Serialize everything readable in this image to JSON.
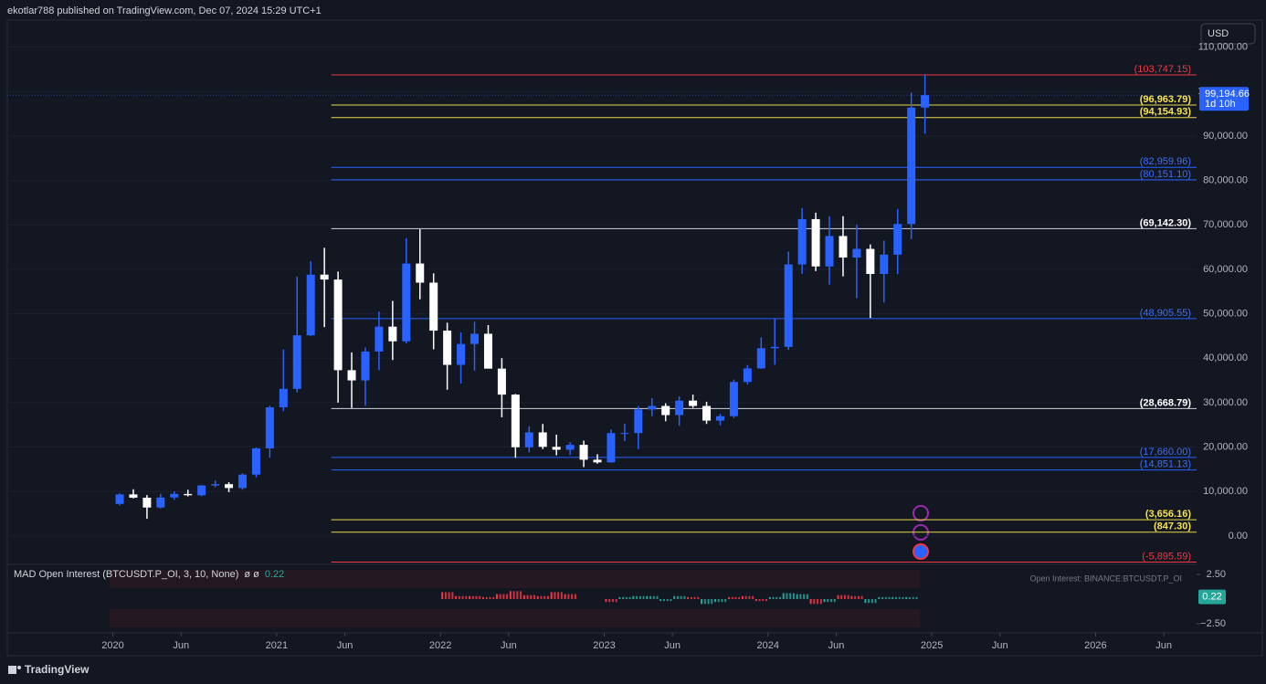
{
  "header": {
    "text": "ekotlar788 published on TradingView.com, Dec 07, 2024 15:29 UTC+1"
  },
  "footer": {
    "brand": "TradingView"
  },
  "currency": "USD",
  "chart_data": {
    "type": "candlestick",
    "up_color": "#2962ff",
    "down_color": "#ffffff",
    "xlim": [
      "2019-05",
      "2026-08"
    ],
    "xticks": [
      {
        "value": "2020-01",
        "label": "2020"
      },
      {
        "value": "2020-06",
        "label": "Jun"
      },
      {
        "value": "2021-01",
        "label": "2021"
      },
      {
        "value": "2021-06",
        "label": "Jun"
      },
      {
        "value": "2022-01",
        "label": "2022"
      },
      {
        "value": "2022-06",
        "label": "Jun"
      },
      {
        "value": "2023-01",
        "label": "2023"
      },
      {
        "value": "2023-06",
        "label": "Jun"
      },
      {
        "value": "2024-01",
        "label": "2024"
      },
      {
        "value": "2024-06",
        "label": "Jun"
      },
      {
        "value": "2025-01",
        "label": "2025"
      },
      {
        "value": "2025-06",
        "label": "Jun"
      },
      {
        "value": "2026-01",
        "label": "2026"
      },
      {
        "value": "2026-06",
        "label": "Jun"
      }
    ],
    "ylim": [
      -6400,
      116500
    ],
    "yticks": [
      {
        "value": 0,
        "label": "0.00"
      },
      {
        "value": 10000,
        "label": "10,000.00"
      },
      {
        "value": 20000,
        "label": "20,000.00"
      },
      {
        "value": 30000,
        "label": "30,000.00"
      },
      {
        "value": 40000,
        "label": "40,000.00"
      },
      {
        "value": 50000,
        "label": "50,000.00"
      },
      {
        "value": 60000,
        "label": "60,000.00"
      },
      {
        "value": 70000,
        "label": "70,000.00"
      },
      {
        "value": 80000,
        "label": "80,000.00"
      },
      {
        "value": 90000,
        "label": "90,000.00"
      },
      {
        "value": 100000,
        "label": "100,000.00"
      },
      {
        "value": 110000,
        "label": "110,000.00"
      }
    ],
    "x": [
      "2020-01",
      "2020-02",
      "2020-03",
      "2020-04",
      "2020-05",
      "2020-06",
      "2020-07",
      "2020-08",
      "2020-09",
      "2020-10",
      "2020-11",
      "2020-12",
      "2021-01",
      "2021-02",
      "2021-03",
      "2021-04",
      "2021-05",
      "2021-06",
      "2021-07",
      "2021-08",
      "2021-09",
      "2021-10",
      "2021-11",
      "2021-12",
      "2022-01",
      "2022-02",
      "2022-03",
      "2022-04",
      "2022-05",
      "2022-06",
      "2022-07",
      "2022-08",
      "2022-09",
      "2022-10",
      "2022-11",
      "2022-12",
      "2023-01",
      "2023-02",
      "2023-03",
      "2023-04",
      "2023-05",
      "2023-06",
      "2023-07",
      "2023-08",
      "2023-09",
      "2023-10",
      "2023-11",
      "2023-12",
      "2024-01",
      "2024-02",
      "2024-03",
      "2024-04",
      "2024-05",
      "2024-06",
      "2024-07",
      "2024-08",
      "2024-09",
      "2024-10",
      "2024-11",
      "2024-12"
    ],
    "open": [
      7200,
      9350,
      8600,
      6400,
      8650,
      9450,
      9150,
      11350,
      11650,
      10780,
      13800,
      19700,
      28950,
      33100,
      45150,
      58800,
      57700,
      37300,
      35000,
      41500,
      47100,
      43800,
      61300,
      57000,
      46200,
      38500,
      43200,
      45500,
      37650,
      31800,
      19950,
      23300,
      20050,
      19400,
      20500,
      17150,
      16550,
      23150,
      23150,
      28450,
      29250,
      27200,
      30450,
      29250,
      25950,
      26950,
      34650,
      37700,
      42250,
      42550,
      61100,
      71300,
      60650,
      67500,
      62650,
      64600,
      58950,
      63300,
      70200,
      96400
    ],
    "high": [
      9600,
      10500,
      9200,
      9450,
      10050,
      10400,
      11450,
      12480,
      12100,
      14100,
      19900,
      29300,
      41950,
      58350,
      61800,
      64850,
      59500,
      41300,
      42400,
      50500,
      52900,
      67000,
      69000,
      59100,
      47990,
      45800,
      48200,
      47450,
      40000,
      31950,
      24650,
      25200,
      22800,
      21100,
      21450,
      18400,
      23950,
      25250,
      29200,
      31000,
      29850,
      31400,
      31800,
      30200,
      27500,
      35200,
      38450,
      44700,
      48950,
      64000,
      73800,
      72750,
      71950,
      71950,
      70000,
      65600,
      66500,
      73600,
      99800,
      103747
    ],
    "low": [
      6900,
      8450,
      3850,
      6150,
      8100,
      8900,
      8950,
      10950,
      9850,
      10400,
      13200,
      17600,
      28100,
      32300,
      45000,
      47000,
      30000,
      28800,
      29300,
      37300,
      39600,
      43300,
      53250,
      42000,
      32900,
      34300,
      37200,
      37700,
      26700,
      17600,
      18800,
      19550,
      18150,
      18200,
      15500,
      16250,
      16500,
      21350,
      19550,
      26950,
      25800,
      24800,
      28850,
      25200,
      24900,
      26550,
      34100,
      37600,
      38550,
      41900,
      59000,
      59600,
      56550,
      58400,
      53500,
      49050,
      52550,
      58900,
      66800,
      90500
    ],
    "close": [
      9350,
      8600,
      6400,
      8650,
      9450,
      9150,
      11350,
      11650,
      10780,
      13800,
      19700,
      28950,
      33100,
      45150,
      58800,
      57700,
      37300,
      35000,
      41500,
      47100,
      43800,
      61300,
      57000,
      46200,
      38500,
      43200,
      45500,
      37650,
      31800,
      19950,
      23300,
      20050,
      19400,
      20500,
      17150,
      16550,
      23150,
      23150,
      28450,
      29250,
      27200,
      30450,
      29250,
      25950,
      26950,
      34650,
      37700,
      42250,
      42550,
      61100,
      71300,
      60650,
      67500,
      62650,
      64600,
      58950,
      63300,
      70200,
      96400,
      99194.66
    ],
    "levels": {
      "values": [
        103747.15,
        96963.79,
        94154.93,
        82959.96,
        80151.1,
        69142.3,
        48905.55,
        28668.79,
        17660.0,
        14851.13,
        3656.16,
        847.3,
        -5895.59
      ],
      "value_labels": [
        "(103,747.15)",
        "(96,963.79)",
        "(94,154.93)",
        "(82,959.96)",
        "(80,151.10)",
        "(69,142.30)",
        "(48,905.55)",
        "(28,668.79)",
        "(17,660.00)",
        "(14,851.13)",
        "(3,656.16)",
        "(847.30)",
        "(-5,895.59)"
      ],
      "colors": [
        "#f23645",
        "#e9d84b",
        "#e9d84b",
        "#2962ff",
        "#2962ff",
        "#d1d4dc",
        "#2962ff",
        "#d1d4dc",
        "#2962ff",
        "#2962ff",
        "#e9d84b",
        "#e9d84b",
        "#f23645"
      ],
      "label_colors": [
        "#f23645",
        "#f7e34a",
        "#f7e34a",
        "#3d6ef5",
        "#3d6ef5",
        "#ffffff",
        "#3d6ef5",
        "#ffffff",
        "#3d6ef5",
        "#3d6ef5",
        "#f7e34a",
        "#f7e34a",
        "#f23645"
      ]
    },
    "last_price": 99194.66,
    "last_price_label": "99,194.66",
    "countdown": "1d 10h",
    "indicator": {
      "title": "MAD Open Interest (BTCUSDT.P_OI, 3, 10, None)",
      "symbols": "ø ø",
      "value": 0.22,
      "source_label": "Open Interest: BINANCE:BTCUSDT.P_OI",
      "ylim": [
        -3.15,
        3.33
      ],
      "yticks": [
        {
          "value": 2.5,
          "label": "2.50"
        },
        {
          "value": -2.5,
          "label": "−2.50"
        }
      ],
      "x": [
        "2022-01",
        "2022-02",
        "2022-03",
        "2022-04",
        "2022-05",
        "2022-06",
        "2022-07",
        "2022-08",
        "2022-09",
        "2022-10",
        "2023-01",
        "2023-02",
        "2023-03",
        "2023-04",
        "2023-05",
        "2023-06",
        "2023-07",
        "2023-08",
        "2023-09",
        "2023-10",
        "2023-11",
        "2023-12",
        "2024-01",
        "2024-02",
        "2024-03",
        "2024-04",
        "2024-05",
        "2024-06",
        "2024-07",
        "2024-08",
        "2024-09",
        "2024-10",
        "2024-11"
      ],
      "values": [
        0.7,
        0.3,
        0.3,
        0.2,
        0.5,
        0.8,
        0.4,
        0.3,
        0.7,
        0.5,
        -0.3,
        0.2,
        0.3,
        0.3,
        -0.2,
        0.3,
        0.2,
        -0.5,
        -0.3,
        0.2,
        0.3,
        -0.2,
        0.2,
        0.6,
        0.5,
        -0.5,
        -0.3,
        0.4,
        0.3,
        -0.4,
        0.2,
        0.2,
        0.2
      ],
      "colors": [
        "#f23645",
        "#f23645",
        "#f23645",
        "#f23645",
        "#f23645",
        "#f23645",
        "#f23645",
        "#f23645",
        "#f23645",
        "#f23645",
        "#f23645",
        "#26a69a",
        "#26a69a",
        "#26a69a",
        "#26a69a",
        "#26a69a",
        "#f23645",
        "#26a69a",
        "#26a69a",
        "#f23645",
        "#f23645",
        "#f23645",
        "#26a69a",
        "#26a69a",
        "#26a69a",
        "#f23645",
        "#26a69a",
        "#f23645",
        "#f23645",
        "#26a69a",
        "#26a69a",
        "#26a69a",
        "#26a69a"
      ]
    }
  }
}
